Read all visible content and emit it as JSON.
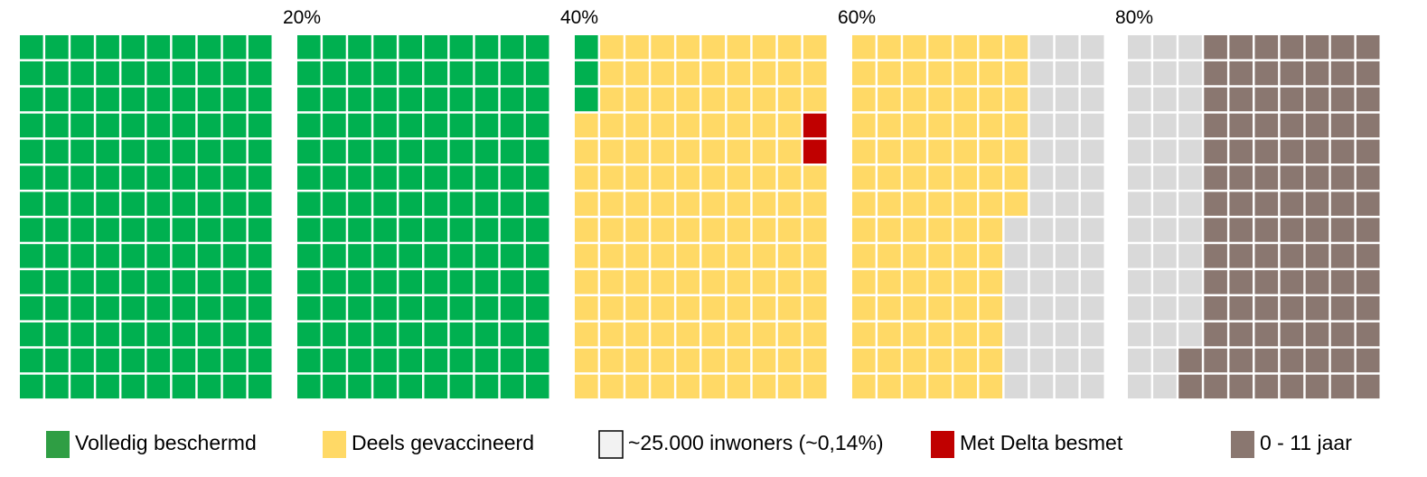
{
  "chart_data": {
    "type": "waffle",
    "unit_label": "~25.000 inwoners (~0,14%)",
    "grid": {
      "columns": 50,
      "rows": 14,
      "total_cells": 700
    },
    "percent_labels": [
      "20%",
      "40%",
      "60%",
      "80%"
    ],
    "categories": [
      {
        "name": "Volledig beschermd",
        "color": "#00b050",
        "cells": 283
      },
      {
        "name": "Deels gevaccineerd",
        "color": "#ffd966",
        "cells": 226
      },
      {
        "name": "~25.000 inwoners (~0,14%)",
        "color": "#d9d9d9",
        "cells": 89
      },
      {
        "name": "Met Delta besmet",
        "color": "#c00000",
        "cells": 2
      },
      {
        "name": "0 - 11 jaar",
        "color": "#8a7770",
        "cells": 100
      }
    ]
  },
  "legend": [
    {
      "label": "Volledig beschermd",
      "color": "#2f9e44",
      "style": "filled"
    },
    {
      "label": "Deels gevaccineerd",
      "color": "#ffd966",
      "style": "filled"
    },
    {
      "label": "~25.000 inwoners (~0,14%)",
      "color": "#f2f2f2",
      "style": "outlined"
    },
    {
      "label": "Met Delta besmet",
      "color": "#c00000",
      "style": "filled"
    },
    {
      "label": "0 - 11 jaar",
      "color": "#8a7770",
      "style": "filled"
    }
  ]
}
